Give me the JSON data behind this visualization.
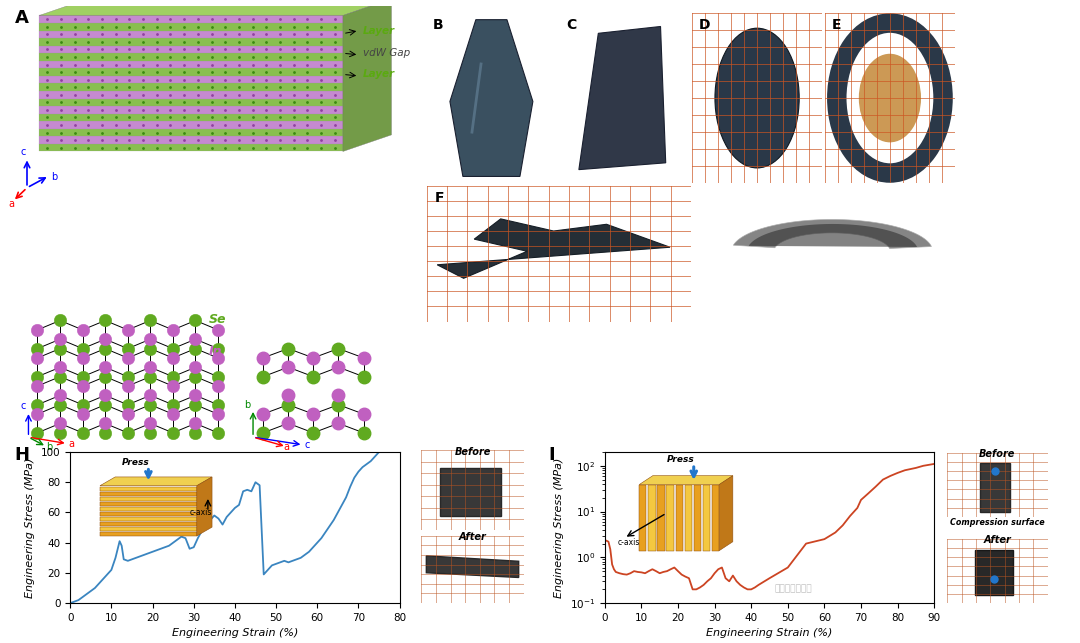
{
  "fig_width": 10.8,
  "fig_height": 6.43,
  "background_color": "#ffffff",
  "panel_label_fontsize": 13,
  "panel_H": {
    "xlabel": "Engineering Strain (%)",
    "ylabel": "Engineering Stress (MPa)",
    "xlim": [
      0,
      80
    ],
    "ylim": [
      0,
      100
    ],
    "xticks": [
      0,
      10,
      20,
      30,
      40,
      50,
      60,
      70,
      80
    ],
    "yticks": [
      0,
      20,
      40,
      60,
      80,
      100
    ],
    "line_color": "#3a85c0"
  },
  "panel_I": {
    "xlabel": "Engineering Strain (%)",
    "ylabel": "Engineering Stress (MPa)",
    "xlim": [
      0,
      90
    ],
    "ylim_log": [
      0.1,
      200
    ],
    "xticks": [
      0,
      10,
      20,
      30,
      40,
      50,
      60,
      70,
      80,
      90
    ],
    "line_color": "#cc4422"
  },
  "H_strain": [
    0,
    1,
    2,
    3,
    4,
    5,
    6,
    7,
    8,
    9,
    10,
    11,
    12,
    12.5,
    13,
    14,
    15,
    16,
    17,
    18,
    19,
    20,
    21,
    22,
    23,
    24,
    25,
    26,
    27,
    28,
    29,
    30,
    31,
    32,
    33,
    34,
    35,
    36,
    37,
    38,
    39,
    40,
    41,
    42,
    43,
    44,
    45,
    46,
    47,
    48,
    49,
    50,
    51,
    52,
    53,
    54,
    55,
    56,
    57,
    58,
    59,
    60,
    61,
    62,
    63,
    64,
    65,
    66,
    67,
    68,
    69,
    70,
    71,
    72,
    73,
    74,
    75
  ],
  "H_stress": [
    0,
    1,
    2,
    4,
    6,
    8,
    10,
    13,
    16,
    19,
    22,
    30,
    41,
    38,
    29,
    28,
    29,
    30,
    31,
    32,
    33,
    34,
    35,
    36,
    37,
    38,
    40,
    42,
    44,
    43,
    36,
    37,
    43,
    48,
    52,
    55,
    58,
    56,
    52,
    57,
    60,
    63,
    65,
    74,
    75,
    74,
    80,
    78,
    19,
    22,
    25,
    26,
    27,
    28,
    27,
    28,
    29,
    30,
    32,
    34,
    37,
    40,
    43,
    47,
    51,
    55,
    60,
    65,
    70,
    77,
    83,
    87,
    90,
    92,
    94,
    97,
    100
  ],
  "I_strain": [
    0.5,
    1,
    1.5,
    2,
    2.5,
    3,
    4,
    5,
    6,
    7,
    8,
    9,
    10,
    11,
    12,
    13,
    14,
    15,
    16,
    17,
    18,
    19,
    20,
    21,
    22,
    23,
    24,
    25,
    26,
    27,
    28,
    29,
    30,
    31,
    32,
    33,
    34,
    35,
    36,
    37,
    38,
    39,
    40,
    41,
    42,
    45,
    50,
    55,
    60,
    63,
    65,
    67,
    69,
    70,
    72,
    74,
    76,
    78,
    80,
    82,
    85,
    87,
    90
  ],
  "I_stress": [
    2.3,
    2.2,
    1.5,
    0.7,
    0.55,
    0.48,
    0.45,
    0.43,
    0.42,
    0.45,
    0.5,
    0.48,
    0.47,
    0.45,
    0.5,
    0.55,
    0.5,
    0.45,
    0.48,
    0.5,
    0.55,
    0.6,
    0.5,
    0.42,
    0.38,
    0.35,
    0.2,
    0.2,
    0.22,
    0.25,
    0.3,
    0.35,
    0.45,
    0.55,
    0.6,
    0.35,
    0.3,
    0.4,
    0.3,
    0.25,
    0.22,
    0.2,
    0.2,
    0.22,
    0.25,
    0.35,
    0.6,
    2.0,
    2.5,
    3.5,
    5,
    8,
    12,
    18,
    25,
    35,
    50,
    60,
    70,
    80,
    90,
    100,
    110
  ]
}
